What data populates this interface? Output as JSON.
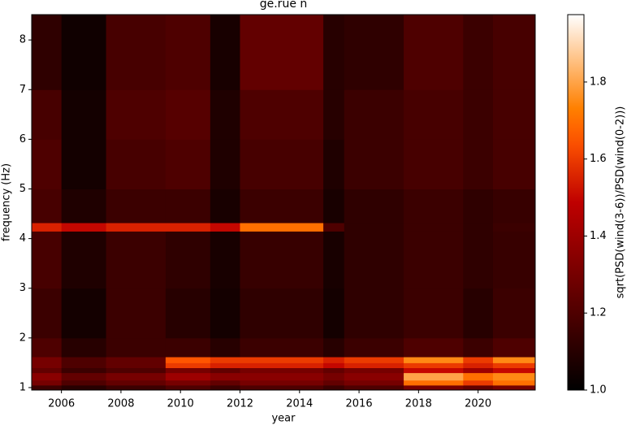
{
  "chart_data": {
    "type": "heatmap",
    "title": "ge.rue n",
    "x_label": "year",
    "y_label": "frequency (Hz)",
    "colorbar_label": "sqrt(PSD(wind(3-6))/PSD(wind(0-2)))",
    "colormap": "gist_heat",
    "xlim": [
      2005,
      2021.92
    ],
    "xticks": [
      2006,
      2008,
      2010,
      2012,
      2014,
      2016,
      2018,
      2020
    ],
    "ylim": [
      0.95,
      8.51
    ],
    "yticks": [
      1,
      2,
      3,
      4,
      5,
      6,
      7,
      8
    ],
    "clim": [
      1.0,
      1.975
    ],
    "cticks": [
      {
        "value": 1,
        "label": "1.0"
      },
      1.2,
      1.4,
      1.6,
      1.8
    ],
    "x_edges": [
      2005,
      2006,
      2007.5,
      2009.5,
      2011,
      2012,
      2014.8,
      2015.5,
      2017.5,
      2019.5,
      2020.5,
      2021.92
    ],
    "y_edges": [
      0.95,
      1.05,
      1.15,
      1.3,
      1.4,
      1.5,
      1.62,
      2,
      3,
      4.15,
      4.32,
      5,
      6,
      7,
      8.51
    ],
    "z": [
      [
        1.15,
        1.1,
        1.15,
        1.2,
        1.15,
        1.2,
        1.15,
        1.2,
        1.3,
        1.25,
        1.3
      ],
      [
        1.3,
        1.2,
        1.25,
        1.3,
        1.25,
        1.3,
        1.25,
        1.3,
        1.7,
        1.6,
        1.7
      ],
      [
        1.35,
        1.25,
        1.3,
        1.4,
        1.35,
        1.35,
        1.3,
        1.35,
        1.8,
        1.7,
        1.75
      ],
      [
        1.25,
        1.15,
        1.2,
        1.3,
        1.25,
        1.3,
        1.25,
        1.3,
        1.5,
        1.4,
        1.5
      ],
      [
        1.3,
        1.2,
        1.25,
        1.6,
        1.55,
        1.55,
        1.5,
        1.55,
        1.6,
        1.55,
        1.6
      ],
      [
        1.3,
        1.2,
        1.25,
        1.65,
        1.6,
        1.6,
        1.55,
        1.6,
        1.75,
        1.6,
        1.75
      ],
      [
        1.2,
        1.1,
        1.15,
        1.15,
        1.1,
        1.15,
        1.1,
        1.15,
        1.2,
        1.15,
        1.2
      ],
      [
        1.15,
        1.05,
        1.15,
        1.1,
        1.05,
        1.12,
        1.05,
        1.12,
        1.15,
        1.1,
        1.15
      ],
      [
        1.18,
        1.08,
        1.15,
        1.12,
        1.06,
        1.14,
        1.06,
        1.12,
        1.15,
        1.12,
        1.14
      ],
      [
        1.55,
        1.5,
        1.55,
        1.55,
        1.5,
        1.7,
        1.2,
        1.12,
        1.15,
        1.12,
        1.15
      ],
      [
        1.18,
        1.08,
        1.15,
        1.15,
        1.06,
        1.15,
        1.06,
        1.12,
        1.15,
        1.12,
        1.14
      ],
      [
        1.2,
        1.05,
        1.18,
        1.2,
        1.08,
        1.18,
        1.08,
        1.15,
        1.18,
        1.15,
        1.18
      ],
      [
        1.18,
        1.05,
        1.2,
        1.22,
        1.08,
        1.2,
        1.1,
        1.15,
        1.18,
        1.15,
        1.18
      ],
      [
        1.12,
        1.04,
        1.18,
        1.2,
        1.06,
        1.25,
        1.1,
        1.12,
        1.2,
        1.15,
        1.18
      ]
    ]
  }
}
